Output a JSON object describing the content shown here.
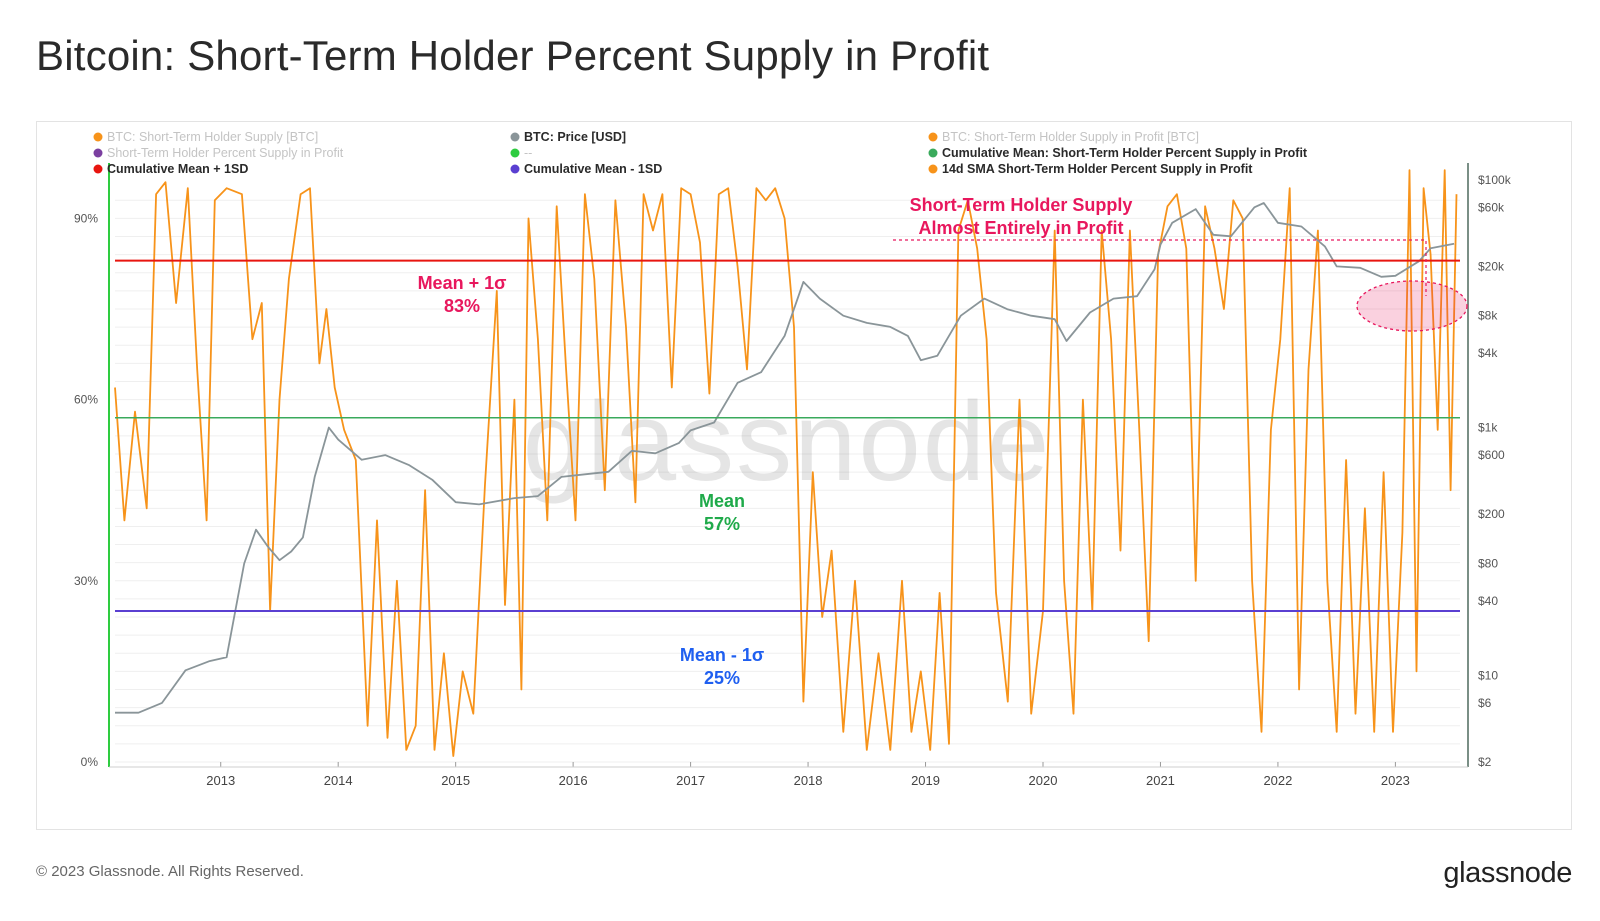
{
  "title": "Bitcoin: Short-Term Holder Percent Supply in Profit",
  "footer": "© 2023 Glassnode. All Rights Reserved.",
  "brand": "glassnode",
  "watermark": "glassnode",
  "legend": [
    {
      "label": "BTC: Short-Term Holder Supply [BTC]",
      "color": "#f7931a",
      "muted": true
    },
    {
      "label": "BTC: Price [USD]",
      "color": "#8a9599",
      "muted": false
    },
    {
      "label": "BTC: Short-Term Holder Supply in Profit [BTC]",
      "color": "#f7931a",
      "muted": true
    },
    {
      "label": "Short-Term Holder Percent Supply in Profit",
      "color": "#7b3fa0",
      "muted": true
    },
    {
      "label": "--",
      "color": "#2ecc40",
      "muted": true
    },
    {
      "label": "Cumulative Mean: Short-Term Holder Percent Supply in Profit",
      "color": "#3aaa5c",
      "muted": false
    },
    {
      "label": "Cumulative Mean + 1SD",
      "color": "#e8150f",
      "muted": false
    },
    {
      "label": "Cumulative Mean - 1SD",
      "color": "#5a3fd1",
      "muted": false
    },
    {
      "label": "14d SMA Short-Term Holder Percent Supply in Profit",
      "color": "#f7931a",
      "muted": false
    }
  ],
  "annotations": {
    "mean_plus": {
      "line1": "Mean + 1σ",
      "line2": "83%",
      "color": "#e8175d"
    },
    "mean": {
      "line1": "Mean",
      "line2": "57%",
      "color": "#1faa4a"
    },
    "mean_minus": {
      "line1": "Mean - 1σ",
      "line2": "25%",
      "color": "#1f5ff0"
    },
    "callout": {
      "line1": "Short-Term Holder Supply",
      "line2": "Almost Entirely in Profit",
      "color": "#e8175d"
    }
  },
  "chart_data": {
    "type": "line",
    "title": "Bitcoin: Short-Term Holder Percent Supply in Profit",
    "x_range": [
      2012.1,
      2023.55
    ],
    "x_ticks": [
      "2013",
      "2014",
      "2015",
      "2016",
      "2017",
      "2018",
      "2019",
      "2020",
      "2021",
      "2022",
      "2023"
    ],
    "y_left": {
      "ticks": [
        "0%",
        "30%",
        "60%",
        "90%"
      ],
      "range": [
        0,
        1.0
      ],
      "unit": "%"
    },
    "y_right": {
      "scale": "log",
      "ticks": [
        "$2",
        "$6",
        "$10",
        "$40",
        "$80",
        "$200",
        "$600",
        "$1k",
        "$4k",
        "$8k",
        "$20k",
        "$60k",
        "$100k"
      ],
      "tick_values": [
        2,
        6,
        10,
        40,
        80,
        200,
        600,
        1000,
        4000,
        8000,
        20000,
        60000,
        100000
      ],
      "range": [
        2,
        150000
      ]
    },
    "horizontal_lines": [
      {
        "name": "Cumulative Mean + 1SD",
        "value": 0.83
      },
      {
        "name": "Cumulative Mean: Short-Term Holder Percent Supply in Profit",
        "value": 0.57
      },
      {
        "name": "Cumulative Mean - 1SD",
        "value": 0.25
      }
    ],
    "series": [
      {
        "name": "14d SMA Short-Term Holder Percent Supply in Profit",
        "axis": "left",
        "x": [
          2012.1,
          2012.18,
          2012.27,
          2012.37,
          2012.45,
          2012.53,
          2012.62,
          2012.72,
          2012.8,
          2012.88,
          2012.95,
          2013.05,
          2013.18,
          2013.27,
          2013.35,
          2013.42,
          2013.5,
          2013.58,
          2013.68,
          2013.76,
          2013.84,
          2013.9,
          2013.97,
          2014.05,
          2014.15,
          2014.25,
          2014.33,
          2014.42,
          2014.5,
          2014.58,
          2014.66,
          2014.74,
          2014.82,
          2014.9,
          2014.98,
          2015.06,
          2015.15,
          2015.25,
          2015.35,
          2015.42,
          2015.5,
          2015.56,
          2015.62,
          2015.7,
          2015.78,
          2015.86,
          2015.94,
          2016.02,
          2016.1,
          2016.18,
          2016.27,
          2016.36,
          2016.45,
          2016.53,
          2016.6,
          2016.68,
          2016.76,
          2016.84,
          2016.92,
          2017.0,
          2017.08,
          2017.16,
          2017.24,
          2017.32,
          2017.4,
          2017.48,
          2017.56,
          2017.64,
          2017.72,
          2017.8,
          2017.88,
          2017.96,
          2018.04,
          2018.12,
          2018.2,
          2018.3,
          2018.4,
          2018.5,
          2018.6,
          2018.7,
          2018.8,
          2018.88,
          2018.96,
          2019.04,
          2019.12,
          2019.2,
          2019.28,
          2019.36,
          2019.44,
          2019.52,
          2019.6,
          2019.7,
          2019.8,
          2019.9,
          2020.0,
          2020.1,
          2020.18,
          2020.26,
          2020.34,
          2020.42,
          2020.5,
          2020.58,
          2020.66,
          2020.74,
          2020.82,
          2020.9,
          2020.98,
          2021.06,
          2021.14,
          2021.22,
          2021.3,
          2021.38,
          2021.46,
          2021.54,
          2021.62,
          2021.7,
          2021.78,
          2021.86,
          2021.94,
          2022.02,
          2022.1,
          2022.18,
          2022.26,
          2022.34,
          2022.42,
          2022.5,
          2022.58,
          2022.66,
          2022.74,
          2022.82,
          2022.9,
          2022.98,
          2023.06,
          2023.12,
          2023.18,
          2023.24,
          2023.3,
          2023.36,
          2023.42,
          2023.47,
          2023.52
        ],
        "values": [
          0.62,
          0.4,
          0.58,
          0.42,
          0.94,
          0.96,
          0.76,
          0.95,
          0.65,
          0.4,
          0.93,
          0.95,
          0.94,
          0.7,
          0.76,
          0.25,
          0.6,
          0.8,
          0.94,
          0.95,
          0.66,
          0.75,
          0.62,
          0.55,
          0.5,
          0.06,
          0.4,
          0.04,
          0.3,
          0.02,
          0.06,
          0.45,
          0.02,
          0.18,
          0.01,
          0.15,
          0.08,
          0.46,
          0.78,
          0.26,
          0.6,
          0.12,
          0.9,
          0.7,
          0.4,
          0.92,
          0.65,
          0.4,
          0.94,
          0.8,
          0.45,
          0.93,
          0.72,
          0.43,
          0.94,
          0.88,
          0.94,
          0.62,
          0.95,
          0.94,
          0.86,
          0.61,
          0.94,
          0.95,
          0.82,
          0.65,
          0.95,
          0.93,
          0.95,
          0.9,
          0.72,
          0.1,
          0.48,
          0.24,
          0.35,
          0.05,
          0.3,
          0.02,
          0.18,
          0.02,
          0.3,
          0.05,
          0.15,
          0.02,
          0.28,
          0.03,
          0.88,
          0.93,
          0.85,
          0.7,
          0.28,
          0.1,
          0.6,
          0.08,
          0.25,
          0.88,
          0.3,
          0.08,
          0.6,
          0.25,
          0.88,
          0.7,
          0.35,
          0.88,
          0.55,
          0.2,
          0.84,
          0.92,
          0.94,
          0.85,
          0.3,
          0.92,
          0.85,
          0.75,
          0.93,
          0.9,
          0.3,
          0.05,
          0.55,
          0.7,
          0.95,
          0.12,
          0.65,
          0.88,
          0.3,
          0.05,
          0.5,
          0.08,
          0.42,
          0.05,
          0.48,
          0.05,
          0.38,
          0.98,
          0.15,
          0.95,
          0.84,
          0.55,
          0.98,
          0.45,
          0.94
        ],
        "color": "#f7931a"
      },
      {
        "name": "BTC: Price [USD]",
        "axis": "right",
        "x": [
          2012.1,
          2012.3,
          2012.5,
          2012.7,
          2012.9,
          2013.05,
          2013.2,
          2013.3,
          2013.4,
          2013.5,
          2013.6,
          2013.7,
          2013.8,
          2013.92,
          2014.0,
          2014.2,
          2014.4,
          2014.6,
          2014.8,
          2015.0,
          2015.2,
          2015.5,
          2015.7,
          2015.9,
          2016.1,
          2016.3,
          2016.5,
          2016.7,
          2016.9,
          2017.0,
          2017.2,
          2017.4,
          2017.6,
          2017.8,
          2017.96,
          2018.1,
          2018.3,
          2018.5,
          2018.7,
          2018.85,
          2018.96,
          2019.1,
          2019.3,
          2019.5,
          2019.7,
          2019.9,
          2020.1,
          2020.2,
          2020.4,
          2020.6,
          2020.8,
          2020.95,
          2021.0,
          2021.1,
          2021.3,
          2021.45,
          2021.6,
          2021.8,
          2021.88,
          2022.0,
          2022.2,
          2022.4,
          2022.5,
          2022.7,
          2022.88,
          2023.0,
          2023.2,
          2023.3,
          2023.5
        ],
        "values": [
          5,
          5,
          6,
          11,
          13,
          14,
          80,
          150,
          110,
          85,
          100,
          130,
          400,
          1000,
          800,
          550,
          600,
          500,
          380,
          250,
          240,
          270,
          280,
          400,
          420,
          440,
          650,
          620,
          750,
          950,
          1100,
          2300,
          2800,
          5500,
          15000,
          11000,
          8000,
          7000,
          6500,
          5500,
          3500,
          3800,
          8000,
          11000,
          9000,
          8000,
          7500,
          5000,
          8500,
          11000,
          11500,
          19000,
          30000,
          45000,
          58000,
          36000,
          35000,
          60000,
          65000,
          45000,
          42000,
          29000,
          20000,
          19500,
          16500,
          16800,
          22000,
          28000,
          30500
        ],
        "color": "#8a9599"
      }
    ]
  }
}
